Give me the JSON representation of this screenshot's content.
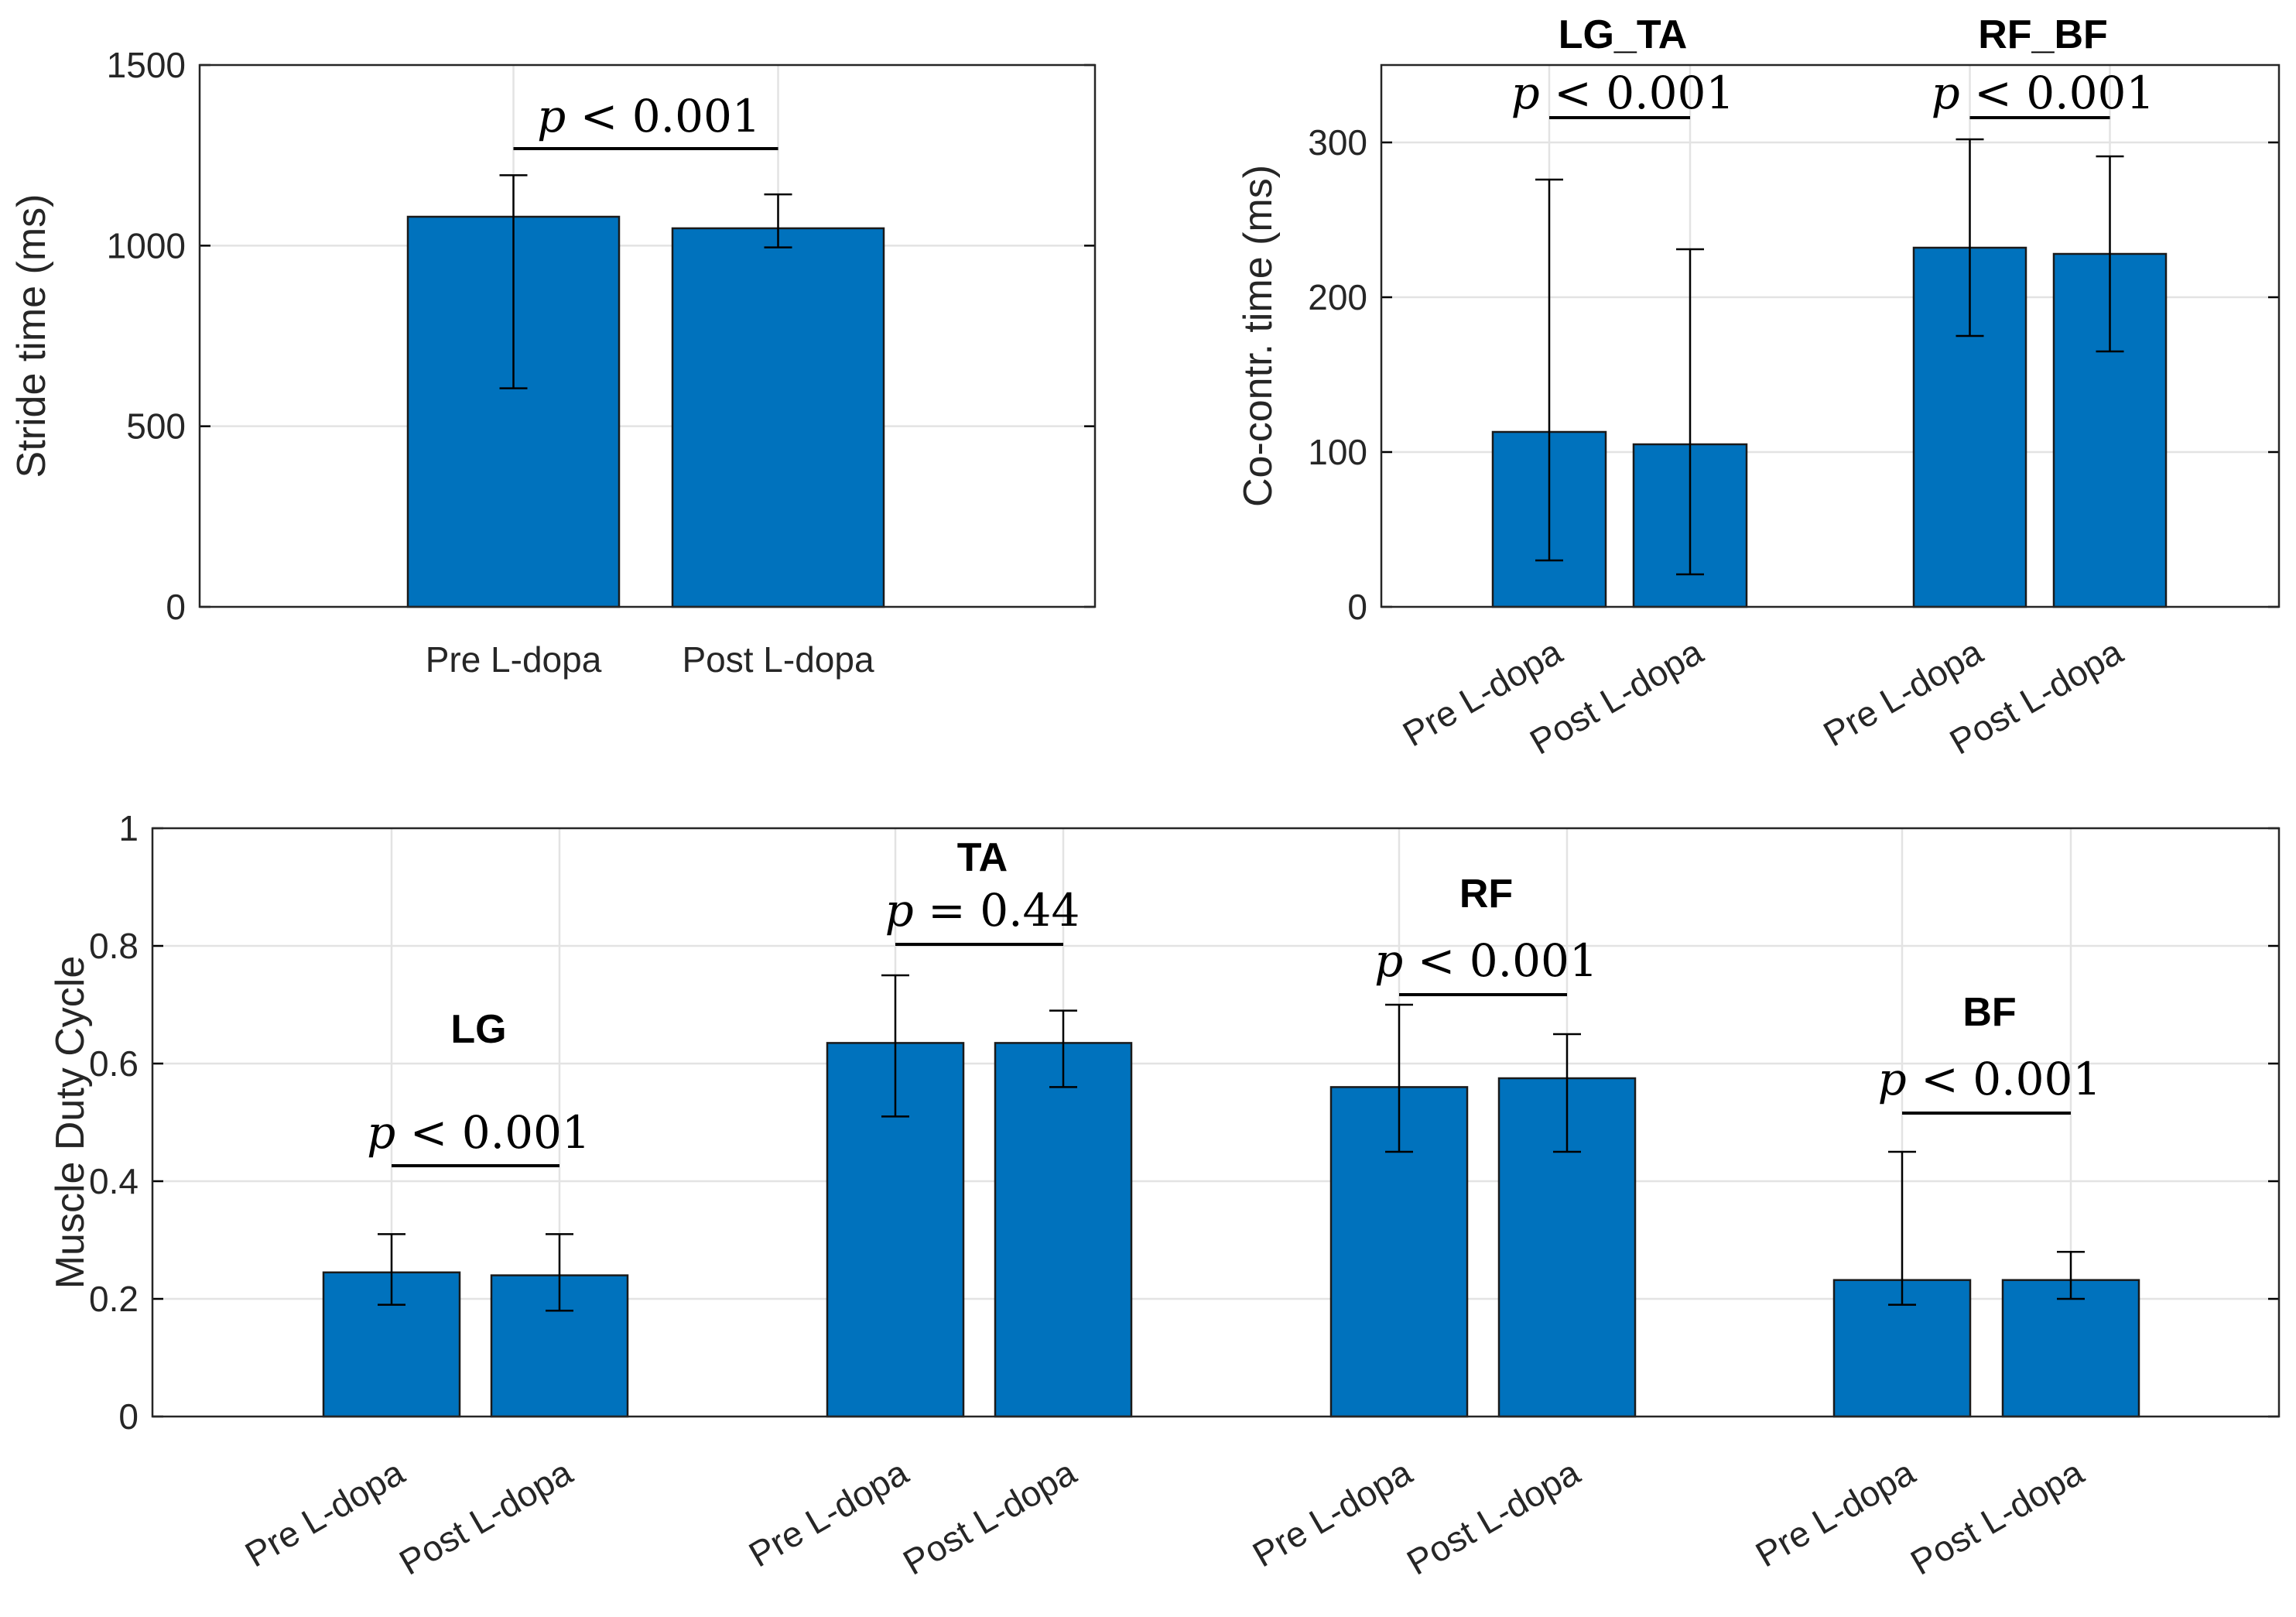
{
  "bar_color": "#0072BD",
  "chart_data": [
    {
      "id": "stride",
      "type": "bar",
      "ylabel": "Stride time (ms)",
      "ylim": [
        0,
        1500
      ],
      "yticks": [
        0,
        500,
        1000,
        1500
      ],
      "grid": true,
      "rotated_xlabels": false,
      "groups": [
        {
          "title": "",
          "p_label": "p < 0.001",
          "bars": [
            {
              "label": "Pre L-dopa",
              "value": 1080,
              "err_low": 605,
              "err_high": 1195
            },
            {
              "label": "Post L-dopa",
              "value": 1048,
              "err_low": 995,
              "err_high": 1142
            }
          ]
        }
      ]
    },
    {
      "id": "cocontr",
      "type": "bar",
      "ylabel": "Co-contr. time (ms)",
      "ylim": [
        0,
        350
      ],
      "yticks": [
        0,
        100,
        200,
        300
      ],
      "grid": true,
      "rotated_xlabels": true,
      "groups": [
        {
          "title": "LG_TA",
          "p_label": "p < 0.001",
          "bars": [
            {
              "label": "Pre L-dopa",
              "value": 113,
              "err_low": 30,
              "err_high": 276
            },
            {
              "label": "Post L-dopa",
              "value": 105,
              "err_low": 21,
              "err_high": 231
            }
          ]
        },
        {
          "title": "RF_BF",
          "p_label": "p < 0.001",
          "bars": [
            {
              "label": "Pre L-dopa",
              "value": 232,
              "err_low": 175,
              "err_high": 302
            },
            {
              "label": "Post L-dopa",
              "value": 228,
              "err_low": 165,
              "err_high": 291
            }
          ]
        }
      ]
    },
    {
      "id": "duty",
      "type": "bar",
      "ylabel": "Muscle Duty Cycle",
      "ylim": [
        0,
        1
      ],
      "yticks": [
        0,
        0.2,
        0.4,
        0.6,
        0.8,
        1
      ],
      "grid": true,
      "rotated_xlabels": true,
      "groups": [
        {
          "title": "LG",
          "p_label": "p < 0.001",
          "bars": [
            {
              "label": "Pre L-dopa",
              "value": 0.245,
              "err_low": 0.19,
              "err_high": 0.31
            },
            {
              "label": "Post L-dopa",
              "value": 0.24,
              "err_low": 0.18,
              "err_high": 0.31
            }
          ]
        },
        {
          "title": "TA",
          "p_label": "p = 0.44",
          "bars": [
            {
              "label": "Pre L-dopa",
              "value": 0.635,
              "err_low": 0.51,
              "err_high": 0.75
            },
            {
              "label": "Post L-dopa",
              "value": 0.635,
              "err_low": 0.56,
              "err_high": 0.69
            }
          ]
        },
        {
          "title": "RF",
          "p_label": "p < 0.001",
          "bars": [
            {
              "label": "Pre L-dopa",
              "value": 0.56,
              "err_low": 0.45,
              "err_high": 0.7
            },
            {
              "label": "Post L-dopa",
              "value": 0.575,
              "err_low": 0.45,
              "err_high": 0.65
            }
          ]
        },
        {
          "title": "BF",
          "p_label": "p < 0.001",
          "bars": [
            {
              "label": "Pre L-dopa",
              "value": 0.232,
              "err_low": 0.19,
              "err_high": 0.45
            },
            {
              "label": "Post L-dopa",
              "value": 0.232,
              "err_low": 0.2,
              "err_high": 0.28
            }
          ]
        }
      ]
    }
  ]
}
